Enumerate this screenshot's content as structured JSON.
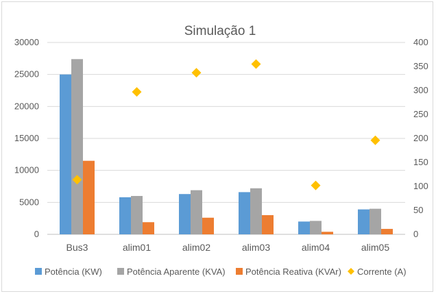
{
  "chart_data": {
    "type": "bar",
    "title": "Simulação 1",
    "categories": [
      "Bus3",
      "alim01",
      "alim02",
      "alim03",
      "alim04",
      "alim05"
    ],
    "series": [
      {
        "name": "Potência (KW)",
        "type": "bar",
        "axis": "left",
        "color": "#5b9bd5",
        "values": [
          25000,
          5800,
          6300,
          6600,
          2000,
          3900
        ]
      },
      {
        "name": "Potência Aparente (KVA)",
        "type": "bar",
        "axis": "left",
        "color": "#a5a5a5",
        "values": [
          27400,
          6000,
          6900,
          7200,
          2100,
          4000
        ]
      },
      {
        "name": "Potência Reativa (KVAr)",
        "type": "bar",
        "axis": "left",
        "color": "#ed7d31",
        "values": [
          11500,
          1900,
          2600,
          3000,
          400,
          850
        ]
      },
      {
        "name": "Corrente (A)",
        "type": "scatter",
        "marker": "diamond",
        "axis": "right",
        "color": "#ffc000",
        "values": [
          114,
          297,
          337,
          355,
          102,
          196
        ]
      }
    ],
    "y_left": {
      "min": 0,
      "max": 30000,
      "ticks": [
        "0",
        "5000",
        "10000",
        "15000",
        "20000",
        "25000",
        "30000"
      ]
    },
    "y_right": {
      "min": 0,
      "max": 400,
      "ticks": [
        "0",
        "50",
        "100",
        "150",
        "200",
        "250",
        "300",
        "350",
        "400"
      ]
    },
    "grid": true,
    "legend_position": "bottom"
  }
}
